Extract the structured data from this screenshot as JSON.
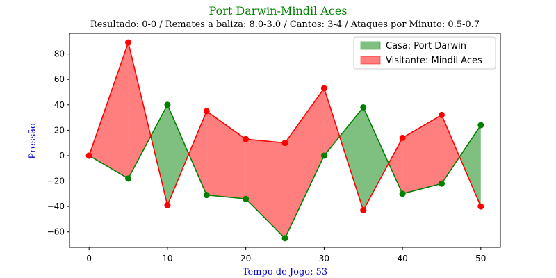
{
  "chart_data": {
    "type": "line",
    "title": "Port Darwin-Mindil Aces",
    "subtitle": "Resultado: 0-0 / Remates a baliza: 8.0-3.0 / Cantos: 3-4 / Ataques por Minuto: 0.5-0.7",
    "xlabel": "Tempo de Jogo: 53",
    "ylabel": "Pressão",
    "x": [
      0,
      5,
      10,
      15,
      20,
      25,
      30,
      35,
      40,
      45,
      50
    ],
    "series": [
      {
        "name": "Casa: Port Darwin",
        "color": "#008000",
        "fill": "#7fbf7f",
        "values": [
          0,
          -18,
          40,
          -31,
          -34,
          -65,
          0,
          38,
          -30,
          -22,
          24
        ]
      },
      {
        "name": "Visitante: Mindil Aces",
        "color": "#ff0000",
        "fill": "#ff7f7f",
        "values": [
          0,
          89,
          -39,
          35,
          13,
          10,
          53,
          -43,
          14,
          32,
          -40
        ]
      }
    ],
    "xlim": [
      -2.5,
      52.5
    ],
    "ylim": [
      -72.2,
      96.2
    ],
    "xticks": [
      0,
      10,
      20,
      30,
      40,
      50
    ],
    "yticks": [
      -60,
      -40,
      -20,
      0,
      20,
      40,
      60,
      80
    ],
    "xtick_labels": [
      "0",
      "10",
      "20",
      "30",
      "40",
      "50"
    ],
    "ytick_labels": [
      "−60",
      "−40",
      "−20",
      "0",
      "20",
      "40",
      "60",
      "80"
    ],
    "grid": false,
    "legend_position": "top-right",
    "title_color": "#008000",
    "label_color": "#0000cd"
  }
}
